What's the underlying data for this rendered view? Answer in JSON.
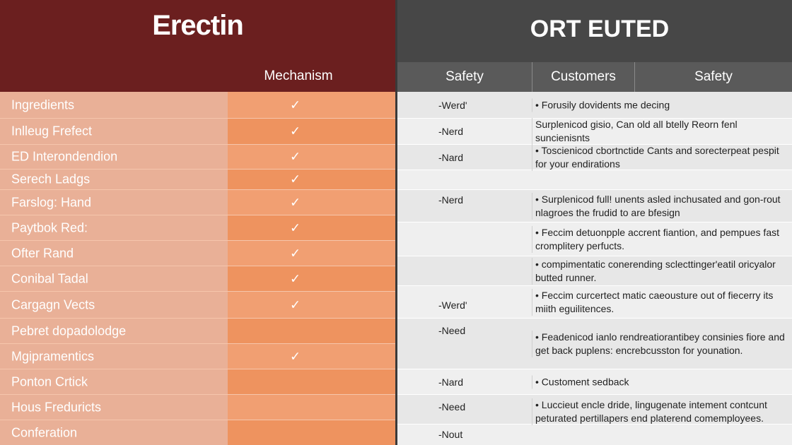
{
  "left_header": {
    "brand": "Erectin",
    "column": "Mechanism"
  },
  "right_header": {
    "title": "ORT EUTED",
    "columns": [
      "Safety",
      "Customers",
      "Safety"
    ]
  },
  "left_rows": [
    {
      "label": "Ingredients",
      "check": "✓"
    },
    {
      "label": "Inlleug Frefect",
      "check": "✓"
    },
    {
      "label": "ED Interondendion",
      "check": "✓"
    },
    {
      "label": "Serech Ladgs",
      "check": "✓"
    },
    {
      "label": "Farslog: Hand",
      "check": "✓"
    },
    {
      "label": "Paytbok Red:",
      "check": "✓"
    },
    {
      "label": "Ofter Rand",
      "check": "✓"
    },
    {
      "label": "Conibal Tadal",
      "check": "✓"
    },
    {
      "label": "Cargagn Vects",
      "check": "✓"
    },
    {
      "label": "Pebret dopadolodge",
      "check": ""
    },
    {
      "label": "Mgipramentics",
      "check": "✓"
    },
    {
      "label": "Ponton Crtick",
      "check": ""
    },
    {
      "label": "Hous Freduricts",
      "check": ""
    },
    {
      "label": "Conferation",
      "check": ""
    }
  ],
  "right_rows": [
    {
      "note": "-Werd'",
      "desc": "• Forusily dovidents me decing"
    },
    {
      "note": "-Nerd",
      "desc": "Surplenicod gisio, Can old all btelly Reorn fenl suncienisnts"
    },
    {
      "note": "-Nard",
      "desc": "• Toscienicod cbortnctide Cants and sorecterpeat pespit for your endirations"
    },
    {
      "note": "",
      "desc": ""
    },
    {
      "note": "-Nerd",
      "desc": "• Surplenicod full! unents asled inchusated and gon-rout nlagroes the frudid to are bfesign"
    },
    {
      "note": "",
      "desc": "• Feccim detuonpple accrent fiantion, and pempues fast cromplitery perfucts."
    },
    {
      "note": "",
      "desc": "• compimentatic conerending sclecttinger'eatil oricyalor butted runner."
    },
    {
      "note": "-Werd'",
      "desc": "• Feccim curcertect matic caeousture out of fiecerry its miith eguilitences."
    },
    {
      "note": "-Need",
      "desc": "• Feadenicod ianlo rendreatiorantibey consinies fiore and get back puplens: encrebcusston for younation."
    },
    {
      "note": "-Nard",
      "desc": "• Customent sedback"
    },
    {
      "note": "-Need",
      "desc": "• Luccieut encle dride, lingugenate intement contcunt peturated pertillapers end platerend comemployees."
    },
    {
      "note": "-Nout",
      "desc": ""
    }
  ]
}
